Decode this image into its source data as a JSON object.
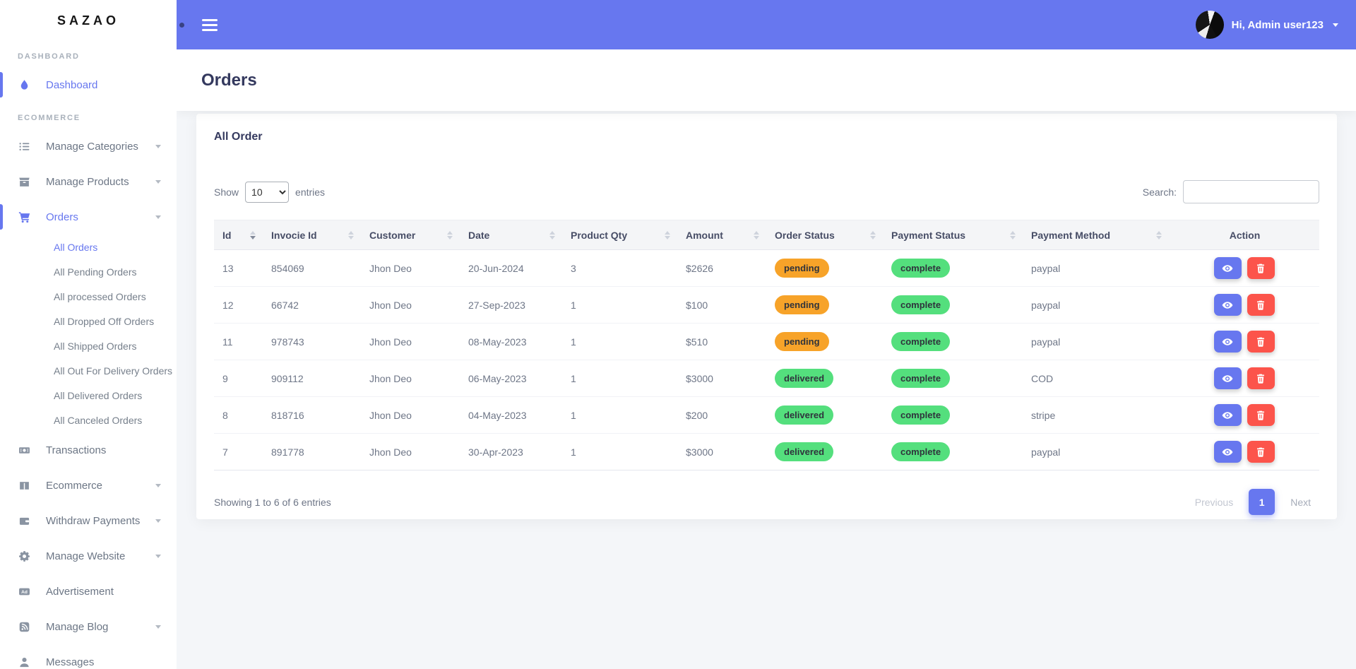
{
  "sidebar": {
    "logo": "SAZAO",
    "items": [
      {
        "type": "section",
        "label": "DASHBOARD"
      },
      {
        "type": "item",
        "label": "Dashboard",
        "icon": "flame-icon",
        "active": true
      },
      {
        "type": "section",
        "label": "ECOMMERCE"
      },
      {
        "type": "item",
        "label": "Manage Categories",
        "icon": "list-icon",
        "caret": true
      },
      {
        "type": "item",
        "label": "Manage Products",
        "icon": "box-icon",
        "caret": true
      },
      {
        "type": "item",
        "label": "Orders",
        "icon": "cart-icon",
        "caret": true,
        "active": true
      },
      {
        "type": "subitem",
        "label": "All Orders",
        "active": true
      },
      {
        "type": "subitem",
        "label": "All Pending Orders"
      },
      {
        "type": "subitem",
        "label": "All processed Orders"
      },
      {
        "type": "subitem",
        "label": "All Dropped Off Orders"
      },
      {
        "type": "subitem",
        "label": "All Shipped Orders"
      },
      {
        "type": "subitem",
        "label": "All Out For Delivery Orders"
      },
      {
        "type": "subitem",
        "label": "All Delivered Orders"
      },
      {
        "type": "subitem",
        "label": "All Canceled Orders"
      },
      {
        "type": "item",
        "label": "Transactions",
        "icon": "money-icon"
      },
      {
        "type": "item",
        "label": "Ecommerce",
        "icon": "columns-icon",
        "caret": true
      },
      {
        "type": "item",
        "label": "Withdraw Payments",
        "icon": "wallet-icon",
        "caret": true
      },
      {
        "type": "item",
        "label": "Manage Website",
        "icon": "gear-icon",
        "caret": true
      },
      {
        "type": "item",
        "label": "Advertisement",
        "icon": "ad-icon"
      },
      {
        "type": "item",
        "label": "Manage Blog",
        "icon": "blog-icon",
        "caret": true
      },
      {
        "type": "item",
        "label": "Messages",
        "icon": "user-icon"
      }
    ]
  },
  "topbar": {
    "menu_icon": "hamburger-icon",
    "avatar_icon": "avatar",
    "user_name": "Hi, Admin user123"
  },
  "page": {
    "title": "Orders"
  },
  "card": {
    "title": "All Order",
    "show_label": "Show",
    "page_length": "10",
    "entries_label": "entries",
    "search_label": "Search:",
    "search_value": "",
    "footer_info": "Showing 1 to 6 of 6 entries",
    "pagination": {
      "previous": "Previous",
      "current": "1",
      "next": "Next"
    }
  },
  "table": {
    "columns": [
      "Id",
      "Invocie Id",
      "Customer",
      "Date",
      "Product Qty",
      "Amount",
      "Order Status",
      "Payment Status",
      "Payment Method",
      "Action"
    ],
    "sorted_column": "Id",
    "sort_direction": "desc",
    "rows": [
      {
        "id": "13",
        "invoice": "854069",
        "customer": "Jhon Deo",
        "date": "20-Jun-2024",
        "qty": "3",
        "amount": "$2626",
        "order_status": "pending",
        "payment_status": "complete",
        "payment_method": "paypal"
      },
      {
        "id": "12",
        "invoice": "66742",
        "customer": "Jhon Deo",
        "date": "27-Sep-2023",
        "qty": "1",
        "amount": "$100",
        "order_status": "pending",
        "payment_status": "complete",
        "payment_method": "paypal"
      },
      {
        "id": "11",
        "invoice": "978743",
        "customer": "Jhon Deo",
        "date": "08-May-2023",
        "qty": "1",
        "amount": "$510",
        "order_status": "pending",
        "payment_status": "complete",
        "payment_method": "paypal"
      },
      {
        "id": "9",
        "invoice": "909112",
        "customer": "Jhon Deo",
        "date": "06-May-2023",
        "qty": "1",
        "amount": "$3000",
        "order_status": "delivered",
        "payment_status": "complete",
        "payment_method": "COD"
      },
      {
        "id": "8",
        "invoice": "818716",
        "customer": "Jhon Deo",
        "date": "04-May-2023",
        "qty": "1",
        "amount": "$200",
        "order_status": "delivered",
        "payment_status": "complete",
        "payment_method": "stripe"
      },
      {
        "id": "7",
        "invoice": "891778",
        "customer": "Jhon Deo",
        "date": "30-Apr-2023",
        "qty": "1",
        "amount": "$3000",
        "order_status": "delivered",
        "payment_status": "complete",
        "payment_method": "paypal"
      }
    ],
    "action_icons": [
      "eye-icon",
      "trash-icon"
    ]
  },
  "colors": {
    "primary": "#6777ef",
    "warning": "#f7a329",
    "success": "#54df7d",
    "danger": "#fc544b",
    "heading": "#34395e",
    "background": "#f4f6f9"
  }
}
